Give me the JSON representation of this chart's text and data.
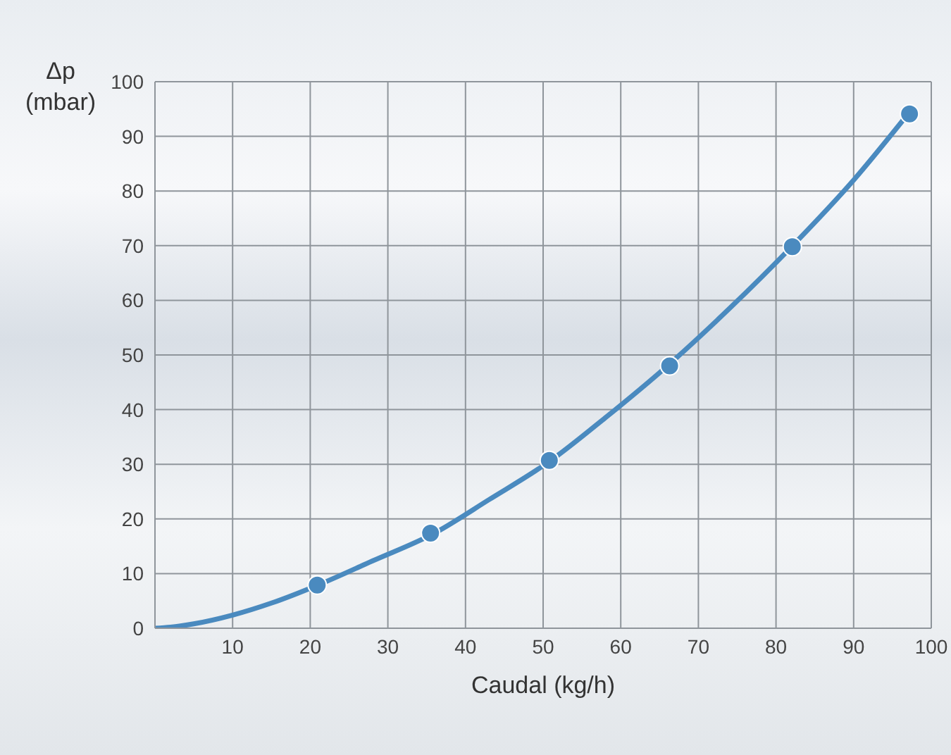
{
  "chart_data": {
    "type": "line",
    "xlabel": "Caudal (kg/h)",
    "ylabel": "Δp (mbar)",
    "series": [
      {
        "color": "#4a8abf",
        "marker": "none",
        "x": [
          0,
          2,
          5,
          10,
          15,
          21,
          28,
          36,
          43,
          51,
          58,
          66,
          74,
          82,
          90,
          97
        ],
        "values": [
          0,
          0.2,
          0.8,
          2.4,
          4.6,
          7.9,
          12.3,
          17.4,
          23.5,
          30.7,
          38.5,
          48,
          58.5,
          69.8,
          82,
          94.1
        ]
      },
      {
        "type": "scatter",
        "color": "#4a8abf",
        "marker": "circle",
        "x": [
          20.9,
          35.5,
          50.8,
          66.3,
          82.1,
          97.2
        ],
        "values": [
          7.9,
          17.4,
          30.7,
          48,
          69.8,
          94.1
        ]
      }
    ],
    "xlim": [
      0,
      100
    ],
    "xticks": [
      10,
      20,
      30,
      40,
      50,
      60,
      70,
      80,
      90,
      100
    ],
    "ylim": [
      0,
      100
    ],
    "yticks": [
      0,
      10,
      20,
      30,
      40,
      50,
      60,
      70,
      80,
      90,
      100
    ],
    "grid": true
  }
}
